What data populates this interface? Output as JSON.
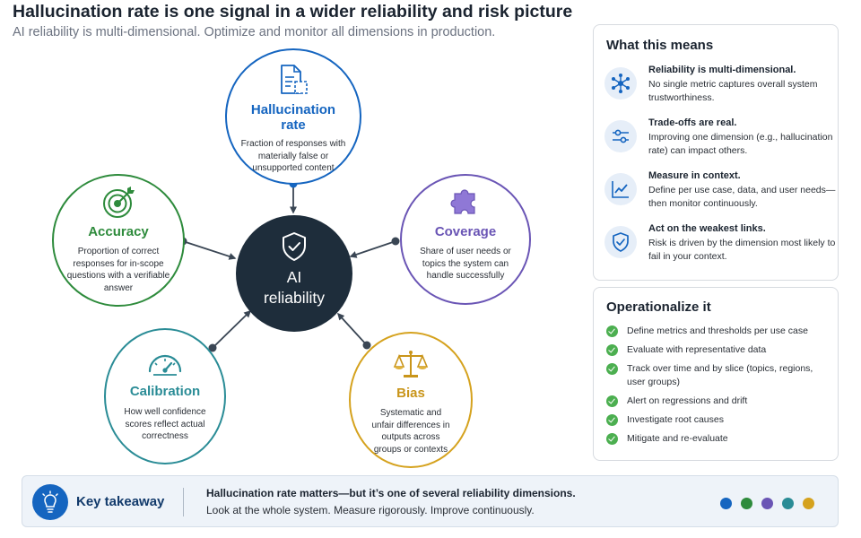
{
  "header": {
    "title": "Hallucination rate is one signal in a wider reliability and risk picture",
    "subtitle": "AI reliability is multi-dimensional. Optimize and monitor all dimensions in production."
  },
  "diagram": {
    "center": {
      "line1": "AI",
      "line2": "reliability",
      "icon": "shield-check-icon"
    },
    "nodes": [
      {
        "key": "hallucination",
        "title": "Hallucination rate",
        "desc": "Fraction of responses with materially false or unsupported content",
        "icon": "document-icon",
        "color": "#1565c0"
      },
      {
        "key": "coverage",
        "title": "Coverage",
        "desc": "Share of user needs or topics the system can handle successfully",
        "icon": "puzzle-icon",
        "color": "#6a55b5"
      },
      {
        "key": "bias",
        "title": "Bias",
        "desc": "Systematic and unfair differences in outputs across groups or contexts",
        "icon": "scales-icon",
        "color": "#d5a21e"
      },
      {
        "key": "calibration",
        "title": "Calibration",
        "desc": "How well confidence scores reflect actual correctness",
        "icon": "gauge-icon",
        "color": "#2a8c96"
      },
      {
        "key": "accuracy",
        "title": "Accuracy",
        "desc": "Proportion of correct responses for in-scope questions with a verifiable answer",
        "icon": "target-icon",
        "color": "#2e8b3c"
      }
    ]
  },
  "meaning": {
    "title": "What this means",
    "items": [
      {
        "head": "Reliability is multi-dimensional.",
        "body": "No single metric captures overall system trustworthiness.",
        "icon": "network-icon"
      },
      {
        "head": "Trade-offs are real.",
        "body": "Improving one dimension (e.g., hallucination rate) can impact others.",
        "icon": "sliders-icon"
      },
      {
        "head": "Measure in context.",
        "body": "Define per use case, data, and user needs—then monitor continuously.",
        "icon": "trend-chart-icon"
      },
      {
        "head": "Act on the weakest links.",
        "body": "Risk is driven by the dimension most likely to fail in your context.",
        "icon": "shield-check-icon"
      }
    ]
  },
  "operationalize": {
    "title": "Operationalize it",
    "items": [
      "Define metrics and thresholds per use case",
      "Evaluate with representative data",
      "Track over time and by slice (topics, regions, user groups)",
      "Alert on regressions and drift",
      "Investigate root causes",
      "Mitigate and re-evaluate"
    ]
  },
  "takeaway": {
    "label": "Key takeaway",
    "headline": "Hallucination rate matters—but it’s one of several reliability dimensions.",
    "text": "Look at the whole system. Measure rigorously. Improve continuously.",
    "icon": "lightbulb-icon",
    "dot_colors": [
      "#1565c0",
      "#2e8b3c",
      "#6a55b5",
      "#2a8c96",
      "#d5a21e"
    ]
  },
  "colors": {
    "center_fill": "#1e2d3b",
    "accent_blue": "#1565c0",
    "check_green": "#4caf50",
    "connector": "#3a4654"
  }
}
